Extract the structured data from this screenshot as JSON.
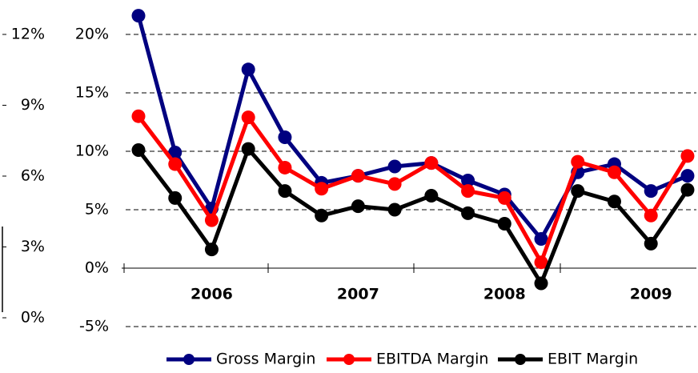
{
  "chart_data": [
    {
      "type": "axis",
      "ylim": [
        0,
        12
      ],
      "yticks": [
        {
          "value": 0,
          "label": "0%"
        },
        {
          "value": 3,
          "label": "3%"
        },
        {
          "value": 6,
          "label": "6%"
        },
        {
          "value": 9,
          "label": "9%"
        },
        {
          "value": 12,
          "label": "12%"
        }
      ]
    },
    {
      "type": "line",
      "categories": [
        null,
        null,
        "2006",
        null,
        null,
        null,
        "2007",
        null,
        null,
        null,
        "2008",
        null,
        null,
        null,
        "2009",
        null
      ],
      "series": [
        {
          "name": "Gross Margin",
          "color": "#000080",
          "values": [
            21.6,
            9.9,
            5.1,
            17.0,
            11.2,
            7.3,
            7.9,
            8.7,
            9.0,
            7.5,
            6.3,
            2.5,
            8.2,
            8.9,
            6.6,
            7.9
          ]
        },
        {
          "name": "EBITDA Margin",
          "color": "#ff0000",
          "values": [
            13.0,
            8.9,
            4.1,
            12.9,
            8.6,
            6.8,
            7.9,
            7.2,
            9.0,
            6.6,
            6.0,
            0.5,
            9.1,
            8.2,
            4.5,
            9.6
          ]
        },
        {
          "name": "EBIT Margin",
          "color": "#000000",
          "values": [
            10.1,
            6.0,
            1.6,
            10.2,
            6.6,
            4.5,
            5.3,
            5.0,
            6.2,
            4.7,
            3.8,
            -1.3,
            6.6,
            5.7,
            2.1,
            6.7
          ]
        }
      ],
      "ylim": [
        -5,
        22
      ],
      "yticks": [
        {
          "value": -5,
          "label": "-5%"
        },
        {
          "value": 0,
          "label": "0%"
        },
        {
          "value": 5,
          "label": "5%"
        },
        {
          "value": 10,
          "label": "10%"
        },
        {
          "value": 15,
          "label": "15%"
        },
        {
          "value": 20,
          "label": "20%"
        }
      ],
      "grid": true
    }
  ]
}
